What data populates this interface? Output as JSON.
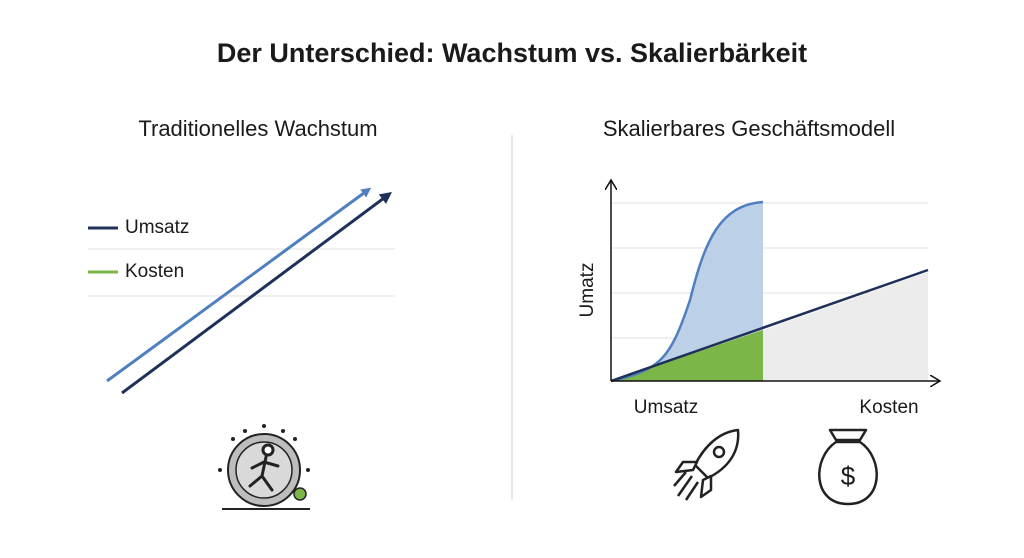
{
  "title": "Der Unterschied: Wachstum vs. Skalierbärkeit",
  "left": {
    "title": "Traditionelles Wachstum",
    "legend": [
      "Umsatz",
      "Kosten"
    ]
  },
  "right": {
    "title": "Skalierbares Geschäftsmodell",
    "y_label": "Umatz",
    "x_labels": [
      "Umsatz",
      "Kosten"
    ]
  }
}
